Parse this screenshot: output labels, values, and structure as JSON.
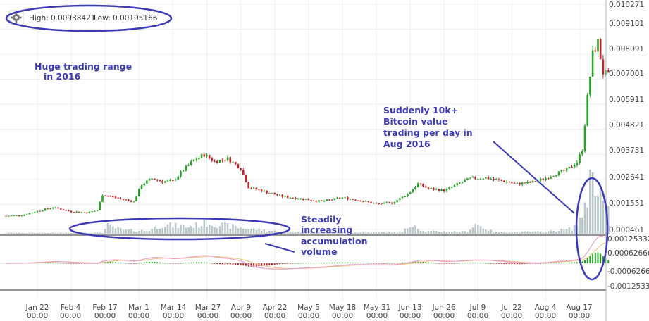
{
  "header": {
    "settings_icon": "gear-icon",
    "high_text": "High: 0.00938421",
    "low_text": "Low: 0.00105166"
  },
  "annotations": {
    "range_line1": "Huge trading range",
    "range_line2": "in 2016",
    "volume_line1": "Steadily",
    "volume_line2": "increasing",
    "volume_line3": "accumulation",
    "volume_line4": "volume",
    "spike_line1": "Suddenly 10k+",
    "spike_line2": "Bitcoin value",
    "spike_line3": "trading per day in",
    "spike_line4": "Aug 2016"
  },
  "colors": {
    "up": "#27a327",
    "down": "#c0262b",
    "volume": "#b9c7c9",
    "annotation": "#3b3bb5",
    "macd_line": "#e8a0c8",
    "signal_line": "#e6c27a"
  },
  "chart_data": {
    "type": "candlestick",
    "title": "",
    "price_axis": {
      "range": [
        0.000461,
        0.010271
      ],
      "ticks": [
        "0.010271",
        "0.009181",
        "0.008091",
        "0.007001",
        "0.005911",
        "0.004821",
        "0.003731",
        "0.002641",
        "0.001551",
        "0.000461"
      ]
    },
    "macd_axis": {
      "range": [
        -0.00125332,
        0.00125332
      ],
      "ticks": [
        "0.00125332",
        "0.00062666",
        "-0.00062666",
        "-0.00125332"
      ]
    },
    "x_ticks": [
      {
        "date": "Jan 22",
        "time": "00:00"
      },
      {
        "date": "Feb 4",
        "time": "00:00"
      },
      {
        "date": "Feb 17",
        "time": "00:00"
      },
      {
        "date": "Mar 1",
        "time": "00:00"
      },
      {
        "date": "Mar 14",
        "time": "00:00"
      },
      {
        "date": "Mar 27",
        "time": "00:00"
      },
      {
        "date": "Apr 9",
        "time": "00:00"
      },
      {
        "date": "Apr 22",
        "time": "00:00"
      },
      {
        "date": "May 5",
        "time": "00:00"
      },
      {
        "date": "May 18",
        "time": "00:00"
      },
      {
        "date": "May 31",
        "time": "00:00"
      },
      {
        "date": "Jun 13",
        "time": "00:00"
      },
      {
        "date": "Jun 26",
        "time": "00:00"
      },
      {
        "date": "Jul 9",
        "time": "00:00"
      },
      {
        "date": "Jul 22",
        "time": "00:00"
      },
      {
        "date": "Aug 4",
        "time": "00:00"
      },
      {
        "date": "Aug 17",
        "time": "00:00"
      }
    ],
    "close_path": [
      [
        "2016-01-10",
        0.00105
      ],
      [
        "2016-01-16",
        0.00108
      ],
      [
        "2016-01-22",
        0.00126
      ],
      [
        "2016-01-28",
        0.00142
      ],
      [
        "2016-02-04",
        0.00124
      ],
      [
        "2016-02-10",
        0.00119
      ],
      [
        "2016-02-14",
        0.0013
      ],
      [
        "2016-02-16",
        0.00198
      ],
      [
        "2016-02-22",
        0.00182
      ],
      [
        "2016-02-28",
        0.00168
      ],
      [
        "2016-03-02",
        0.00242
      ],
      [
        "2016-03-06",
        0.00268
      ],
      [
        "2016-03-10",
        0.00255
      ],
      [
        "2016-03-14",
        0.00256
      ],
      [
        "2016-03-18",
        0.00305
      ],
      [
        "2016-03-22",
        0.00348
      ],
      [
        "2016-03-26",
        0.00372
      ],
      [
        "2016-03-30",
        0.00342
      ],
      [
        "2016-04-04",
        0.00355
      ],
      [
        "2016-04-09",
        0.00312
      ],
      [
        "2016-04-12",
        0.0023
      ],
      [
        "2016-04-18",
        0.00212
      ],
      [
        "2016-04-25",
        0.0019
      ],
      [
        "2016-05-01",
        0.00182
      ],
      [
        "2016-05-10",
        0.00168
      ],
      [
        "2016-05-18",
        0.00185
      ],
      [
        "2016-05-25",
        0.00172
      ],
      [
        "2016-05-31",
        0.00158
      ],
      [
        "2016-06-06",
        0.00162
      ],
      [
        "2016-06-12",
        0.002
      ],
      [
        "2016-06-16",
        0.00245
      ],
      [
        "2016-06-20",
        0.00225
      ],
      [
        "2016-06-26",
        0.00215
      ],
      [
        "2016-07-02",
        0.00248
      ],
      [
        "2016-07-06",
        0.00268
      ],
      [
        "2016-07-12",
        0.00272
      ],
      [
        "2016-07-18",
        0.00258
      ],
      [
        "2016-07-24",
        0.00245
      ],
      [
        "2016-07-30",
        0.00252
      ],
      [
        "2016-08-04",
        0.0027
      ],
      [
        "2016-08-08",
        0.0029
      ],
      [
        "2016-08-12",
        0.00305
      ],
      [
        "2016-08-16",
        0.0034
      ],
      [
        "2016-08-18",
        0.00395
      ],
      [
        "2016-08-20",
        0.0062
      ],
      [
        "2016-08-22",
        0.0081
      ],
      [
        "2016-08-24",
        0.0086
      ],
      [
        "2016-08-26",
        0.0073
      ],
      [
        "2016-08-28",
        0.00715
      ]
    ],
    "volume_path": [
      [
        "2016-01-10",
        0.04
      ],
      [
        "2016-02-04",
        0.04
      ],
      [
        "2016-02-16",
        0.05
      ],
      [
        "2016-02-18",
        0.4
      ],
      [
        "2016-02-24",
        0.18
      ],
      [
        "2016-03-04",
        0.15
      ],
      [
        "2016-03-10",
        0.45
      ],
      [
        "2016-03-20",
        0.35
      ],
      [
        "2016-03-27",
        0.55
      ],
      [
        "2016-04-04",
        0.4
      ],
      [
        "2016-04-12",
        0.25
      ],
      [
        "2016-04-25",
        0.1
      ],
      [
        "2016-05-20",
        0.06
      ],
      [
        "2016-06-10",
        0.08
      ],
      [
        "2016-06-14",
        0.55
      ],
      [
        "2016-06-18",
        0.12
      ],
      [
        "2016-07-05",
        0.1
      ],
      [
        "2016-07-08",
        0.5
      ],
      [
        "2016-07-15",
        0.08
      ],
      [
        "2016-08-04",
        0.1
      ],
      [
        "2016-08-14",
        0.25
      ],
      [
        "2016-08-17",
        0.6
      ],
      [
        "2016-08-20",
        2.0
      ],
      [
        "2016-08-22",
        3.2
      ],
      [
        "2016-08-24",
        2.7
      ],
      [
        "2016-08-26",
        1.6
      ],
      [
        "2016-08-28",
        1.1
      ]
    ],
    "volume_unit": "relative"
  }
}
